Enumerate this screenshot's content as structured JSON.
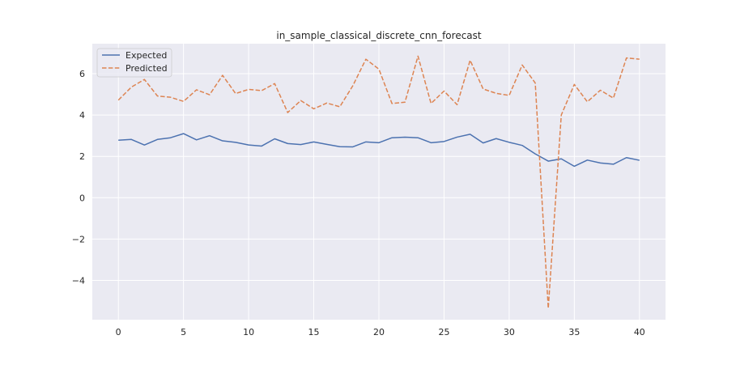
{
  "chart_data": {
    "type": "line",
    "title": "in_sample_classical_discrete_cnn_forecast",
    "xlabel": "",
    "ylabel": "",
    "x": [
      0,
      1,
      2,
      3,
      4,
      5,
      6,
      7,
      8,
      9,
      10,
      11,
      12,
      13,
      14,
      15,
      16,
      17,
      18,
      19,
      20,
      21,
      22,
      23,
      24,
      25,
      26,
      27,
      28,
      29,
      30,
      31,
      32,
      33,
      34,
      35,
      36,
      37,
      38,
      39,
      40
    ],
    "xlim": [
      -2,
      42
    ],
    "ylim": [
      -5.9,
      7.45
    ],
    "xticks": [
      0,
      5,
      10,
      15,
      20,
      25,
      30,
      35,
      40
    ],
    "xtick_labels": [
      "0",
      "5",
      "10",
      "15",
      "20",
      "25",
      "30",
      "35",
      "40"
    ],
    "yticks": [
      -4,
      -2,
      0,
      2,
      4,
      6
    ],
    "ytick_labels": [
      "−4",
      "−2",
      "0",
      "2",
      "4",
      "6"
    ],
    "grid": true,
    "legend_position": "top-left",
    "series": [
      {
        "name": "Expected",
        "color": "#4c72b0",
        "style": "solid",
        "values": [
          2.78,
          2.82,
          2.55,
          2.82,
          2.9,
          3.1,
          2.8,
          3.0,
          2.75,
          2.68,
          2.55,
          2.5,
          2.85,
          2.62,
          2.57,
          2.7,
          2.58,
          2.47,
          2.46,
          2.7,
          2.66,
          2.9,
          2.93,
          2.9,
          2.66,
          2.72,
          2.93,
          3.07,
          2.65,
          2.86,
          2.68,
          2.53,
          2.12,
          1.77,
          1.88,
          1.52,
          1.82,
          1.68,
          1.62,
          1.94,
          1.81
        ]
      },
      {
        "name": "Predicted",
        "color": "#dd8452",
        "style": "dashed",
        "values": [
          4.72,
          5.35,
          5.72,
          4.92,
          4.86,
          4.66,
          5.22,
          4.98,
          5.92,
          5.04,
          5.24,
          5.18,
          5.52,
          4.12,
          4.7,
          4.3,
          4.58,
          4.4,
          5.42,
          6.7,
          6.22,
          4.56,
          4.62,
          6.85,
          4.56,
          5.16,
          4.5,
          6.65,
          5.26,
          5.05,
          4.95,
          6.42,
          5.55,
          -5.35,
          4.0,
          5.48,
          4.64,
          5.2,
          4.82,
          6.76,
          6.7
        ]
      }
    ]
  }
}
